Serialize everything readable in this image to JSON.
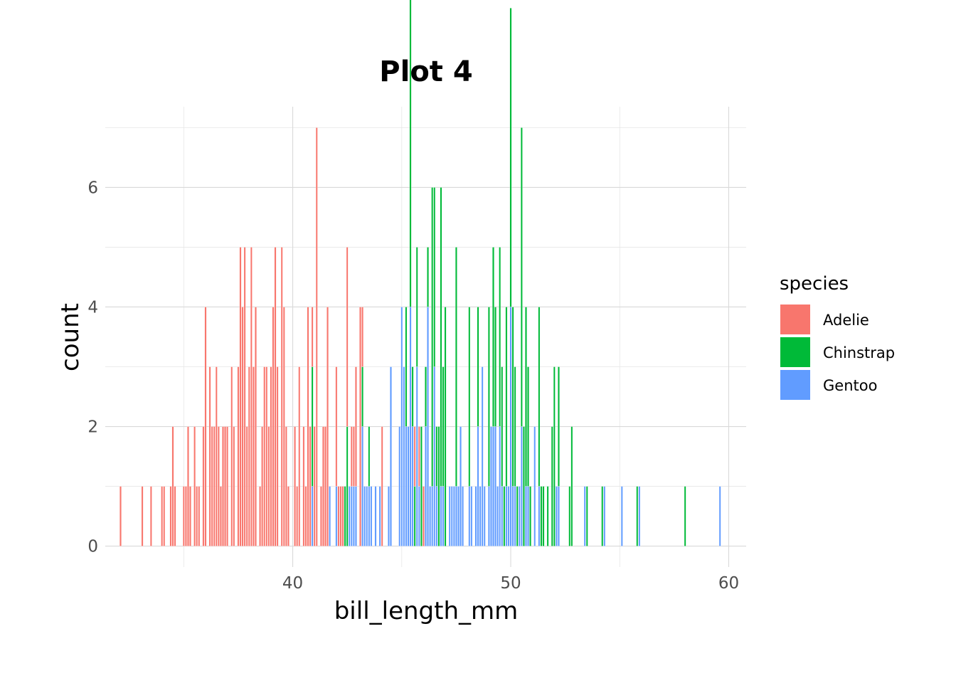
{
  "chart_data": {
    "type": "bar",
    "subtype": "stacked-histogram",
    "title": "Plot 4",
    "xlabel": "bill_length_mm",
    "ylabel": "count",
    "xlim": [
      31.4,
      60.8
    ],
    "ylim": [
      -0.35,
      7.35
    ],
    "x_ticks": [
      40,
      50,
      60
    ],
    "x_tick_labels": [
      "40",
      "50",
      "60"
    ],
    "y_ticks": [
      0,
      2,
      4,
      6
    ],
    "y_tick_labels": [
      "0",
      "2",
      "4",
      "6"
    ],
    "grid": true,
    "legend": {
      "title": "species",
      "position": "right"
    },
    "binwidth": 0.1,
    "series": [
      {
        "name": "Adelie",
        "color": "#F8766D",
        "x": [
          32.1,
          33.1,
          33.5,
          34.0,
          34.1,
          34.4,
          34.5,
          34.6,
          35.0,
          35.1,
          35.2,
          35.3,
          35.5,
          35.6,
          35.7,
          35.9,
          36.0,
          36.2,
          36.3,
          36.4,
          36.5,
          36.6,
          36.7,
          36.8,
          36.9,
          37.0,
          37.2,
          37.3,
          37.5,
          37.6,
          37.7,
          37.8,
          37.9,
          38.0,
          38.1,
          38.2,
          38.3,
          38.5,
          38.6,
          38.7,
          38.8,
          38.9,
          39.0,
          39.1,
          39.2,
          39.3,
          39.5,
          39.6,
          39.7,
          39.8,
          40.1,
          40.2,
          40.3,
          40.5,
          40.6,
          40.7,
          40.8,
          40.9,
          41.0,
          41.1,
          41.3,
          41.4,
          41.5,
          41.6,
          42.0,
          42.1,
          42.2,
          42.3,
          42.5,
          42.7,
          42.8,
          42.9,
          43.1,
          43.2,
          44.1,
          45.6,
          45.8,
          46.0
        ],
        "counts": [
          1,
          1,
          1,
          1,
          1,
          1,
          2,
          1,
          1,
          1,
          2,
          1,
          2,
          1,
          1,
          2,
          4,
          3,
          2,
          2,
          3,
          2,
          1,
          2,
          2,
          2,
          3,
          2,
          3,
          5,
          4,
          5,
          2,
          3,
          5,
          3,
          4,
          1,
          2,
          3,
          3,
          2,
          3,
          4,
          5,
          3,
          5,
          4,
          2,
          1,
          2,
          1,
          3,
          2,
          1,
          4,
          2,
          1,
          2,
          7,
          1,
          2,
          2,
          4,
          2,
          1,
          1,
          1,
          3,
          1,
          1,
          2,
          4,
          1,
          2,
          1,
          1,
          1
        ]
      },
      {
        "name": "Chinstrap",
        "color": "#00BA38",
        "x": [
          40.9,
          42.4,
          42.5,
          43.2,
          43.5,
          45.2,
          45.4,
          45.5,
          45.6,
          45.7,
          45.9,
          46.1,
          46.2,
          46.4,
          46.5,
          46.6,
          46.7,
          46.8,
          46.9,
          47.0,
          47.5,
          48.1,
          48.5,
          49.0,
          49.2,
          49.3,
          49.5,
          49.6,
          49.7,
          49.8,
          50.0,
          50.1,
          50.2,
          50.3,
          50.5,
          50.6,
          50.7,
          50.8,
          50.9,
          51.3,
          51.4,
          51.5,
          51.7,
          51.9,
          52.0,
          52.2,
          52.7,
          52.8,
          53.5,
          54.2,
          55.8,
          58.0
        ],
        "counts": [
          2,
          1,
          2,
          1,
          1,
          2,
          6,
          1,
          1,
          2,
          2,
          1,
          1,
          5,
          3,
          1,
          2,
          5,
          2,
          4,
          4,
          3,
          2,
          3,
          3,
          2,
          3,
          2,
          1,
          3,
          5,
          3,
          2,
          1,
          5,
          2,
          3,
          2,
          1,
          3,
          1,
          1,
          1,
          2,
          3,
          2,
          1,
          2,
          1,
          1,
          1,
          1
        ]
      },
      {
        "name": "Gentoo",
        "color": "#619CFF",
        "x": [
          40.9,
          41.7,
          42.0,
          42.6,
          42.7,
          42.8,
          42.9,
          43.2,
          43.3,
          43.4,
          43.5,
          43.6,
          43.8,
          44.0,
          44.4,
          44.5,
          44.9,
          45.0,
          45.1,
          45.2,
          45.3,
          45.4,
          45.5,
          45.7,
          45.8,
          46.1,
          46.2,
          46.3,
          46.4,
          46.5,
          46.6,
          46.8,
          46.9,
          47.2,
          47.3,
          47.4,
          47.5,
          47.6,
          47.7,
          47.8,
          48.1,
          48.2,
          48.4,
          48.5,
          48.6,
          48.7,
          48.8,
          49.0,
          49.1,
          49.2,
          49.3,
          49.4,
          49.5,
          49.6,
          49.8,
          49.9,
          50.0,
          50.1,
          50.2,
          50.4,
          50.5,
          50.7,
          50.8,
          51.1,
          51.3,
          52.1,
          52.2,
          53.4,
          54.3,
          55.1,
          55.9,
          59.6
        ],
        "counts": [
          1,
          1,
          1,
          1,
          1,
          1,
          1,
          2,
          1,
          1,
          1,
          1,
          1,
          1,
          1,
          3,
          2,
          4,
          3,
          2,
          2,
          4,
          2,
          3,
          1,
          2,
          4,
          1,
          1,
          3,
          1,
          1,
          1,
          1,
          1,
          1,
          1,
          1,
          2,
          1,
          1,
          1,
          1,
          2,
          1,
          3,
          1,
          1,
          2,
          2,
          2,
          1,
          2,
          1,
          1,
          1,
          4,
          1,
          1,
          1,
          2,
          1,
          1,
          2,
          1,
          1,
          1,
          1,
          1,
          1,
          1,
          1
        ]
      }
    ]
  }
}
